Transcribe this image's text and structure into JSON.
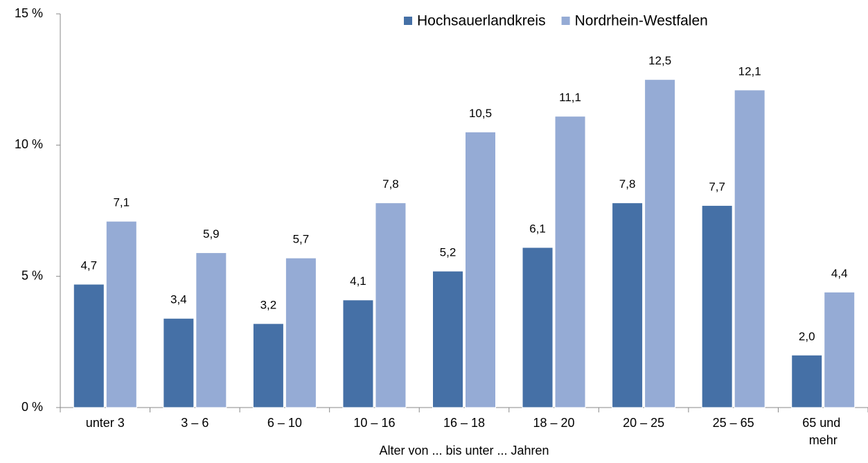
{
  "chart_data": {
    "type": "bar",
    "categories": [
      "unter 3",
      "3 –  6",
      "6 – 10",
      "10 – 16",
      "16 – 18",
      "18 – 20",
      "20 – 25",
      "25 – 65",
      "65 und mehr"
    ],
    "series": [
      {
        "name": "Hochsauerlandkreis",
        "color": "#4570a6",
        "values": [
          4.7,
          3.4,
          3.2,
          4.1,
          5.2,
          6.1,
          7.8,
          7.7,
          2.0
        ],
        "value_labels": [
          "4,7",
          "3,4",
          "3,2",
          "4,1",
          "5,2",
          "6,1",
          "7,8",
          "7,7",
          "2,0"
        ]
      },
      {
        "name": "Nordrhein-Westfalen",
        "color": "#95abd5",
        "values": [
          7.1,
          5.9,
          5.7,
          7.8,
          10.5,
          11.1,
          12.5,
          12.1,
          4.4
        ],
        "value_labels": [
          "7,1",
          "5,9",
          "5,7",
          "7,8",
          "10,5",
          "11,1",
          "12,5",
          "12,1",
          "4,4"
        ]
      }
    ],
    "ylim": [
      0,
      15
    ],
    "yticks": [
      {
        "value": 0,
        "label": "0 %"
      },
      {
        "value": 5,
        "label": "5 %"
      },
      {
        "value": 10,
        "label": "10 %"
      },
      {
        "value": 15,
        "label": "15 %"
      }
    ],
    "x_label": "Alter von ... bis unter ... Jahren",
    "legend": "upper right",
    "grid": false
  }
}
